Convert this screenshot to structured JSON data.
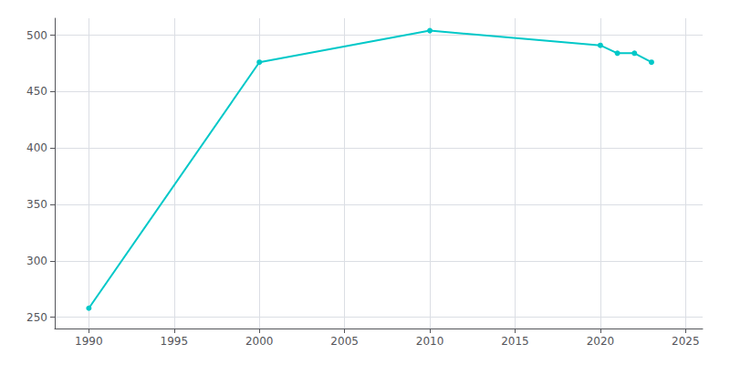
{
  "chart_data": {
    "type": "line",
    "x": [
      1990,
      2000,
      2010,
      2020,
      2021,
      2022,
      2023
    ],
    "values": [
      258,
      476,
      504,
      491,
      484,
      484,
      476
    ],
    "color": "#00c8c8",
    "marker": "circle",
    "xlim": [
      1988,
      2026
    ],
    "ylim": [
      240,
      515
    ],
    "xticks": [
      1990,
      1995,
      2000,
      2005,
      2010,
      2015,
      2020,
      2025
    ],
    "yticks": [
      250,
      300,
      350,
      400,
      450,
      500
    ],
    "grid": true
  }
}
